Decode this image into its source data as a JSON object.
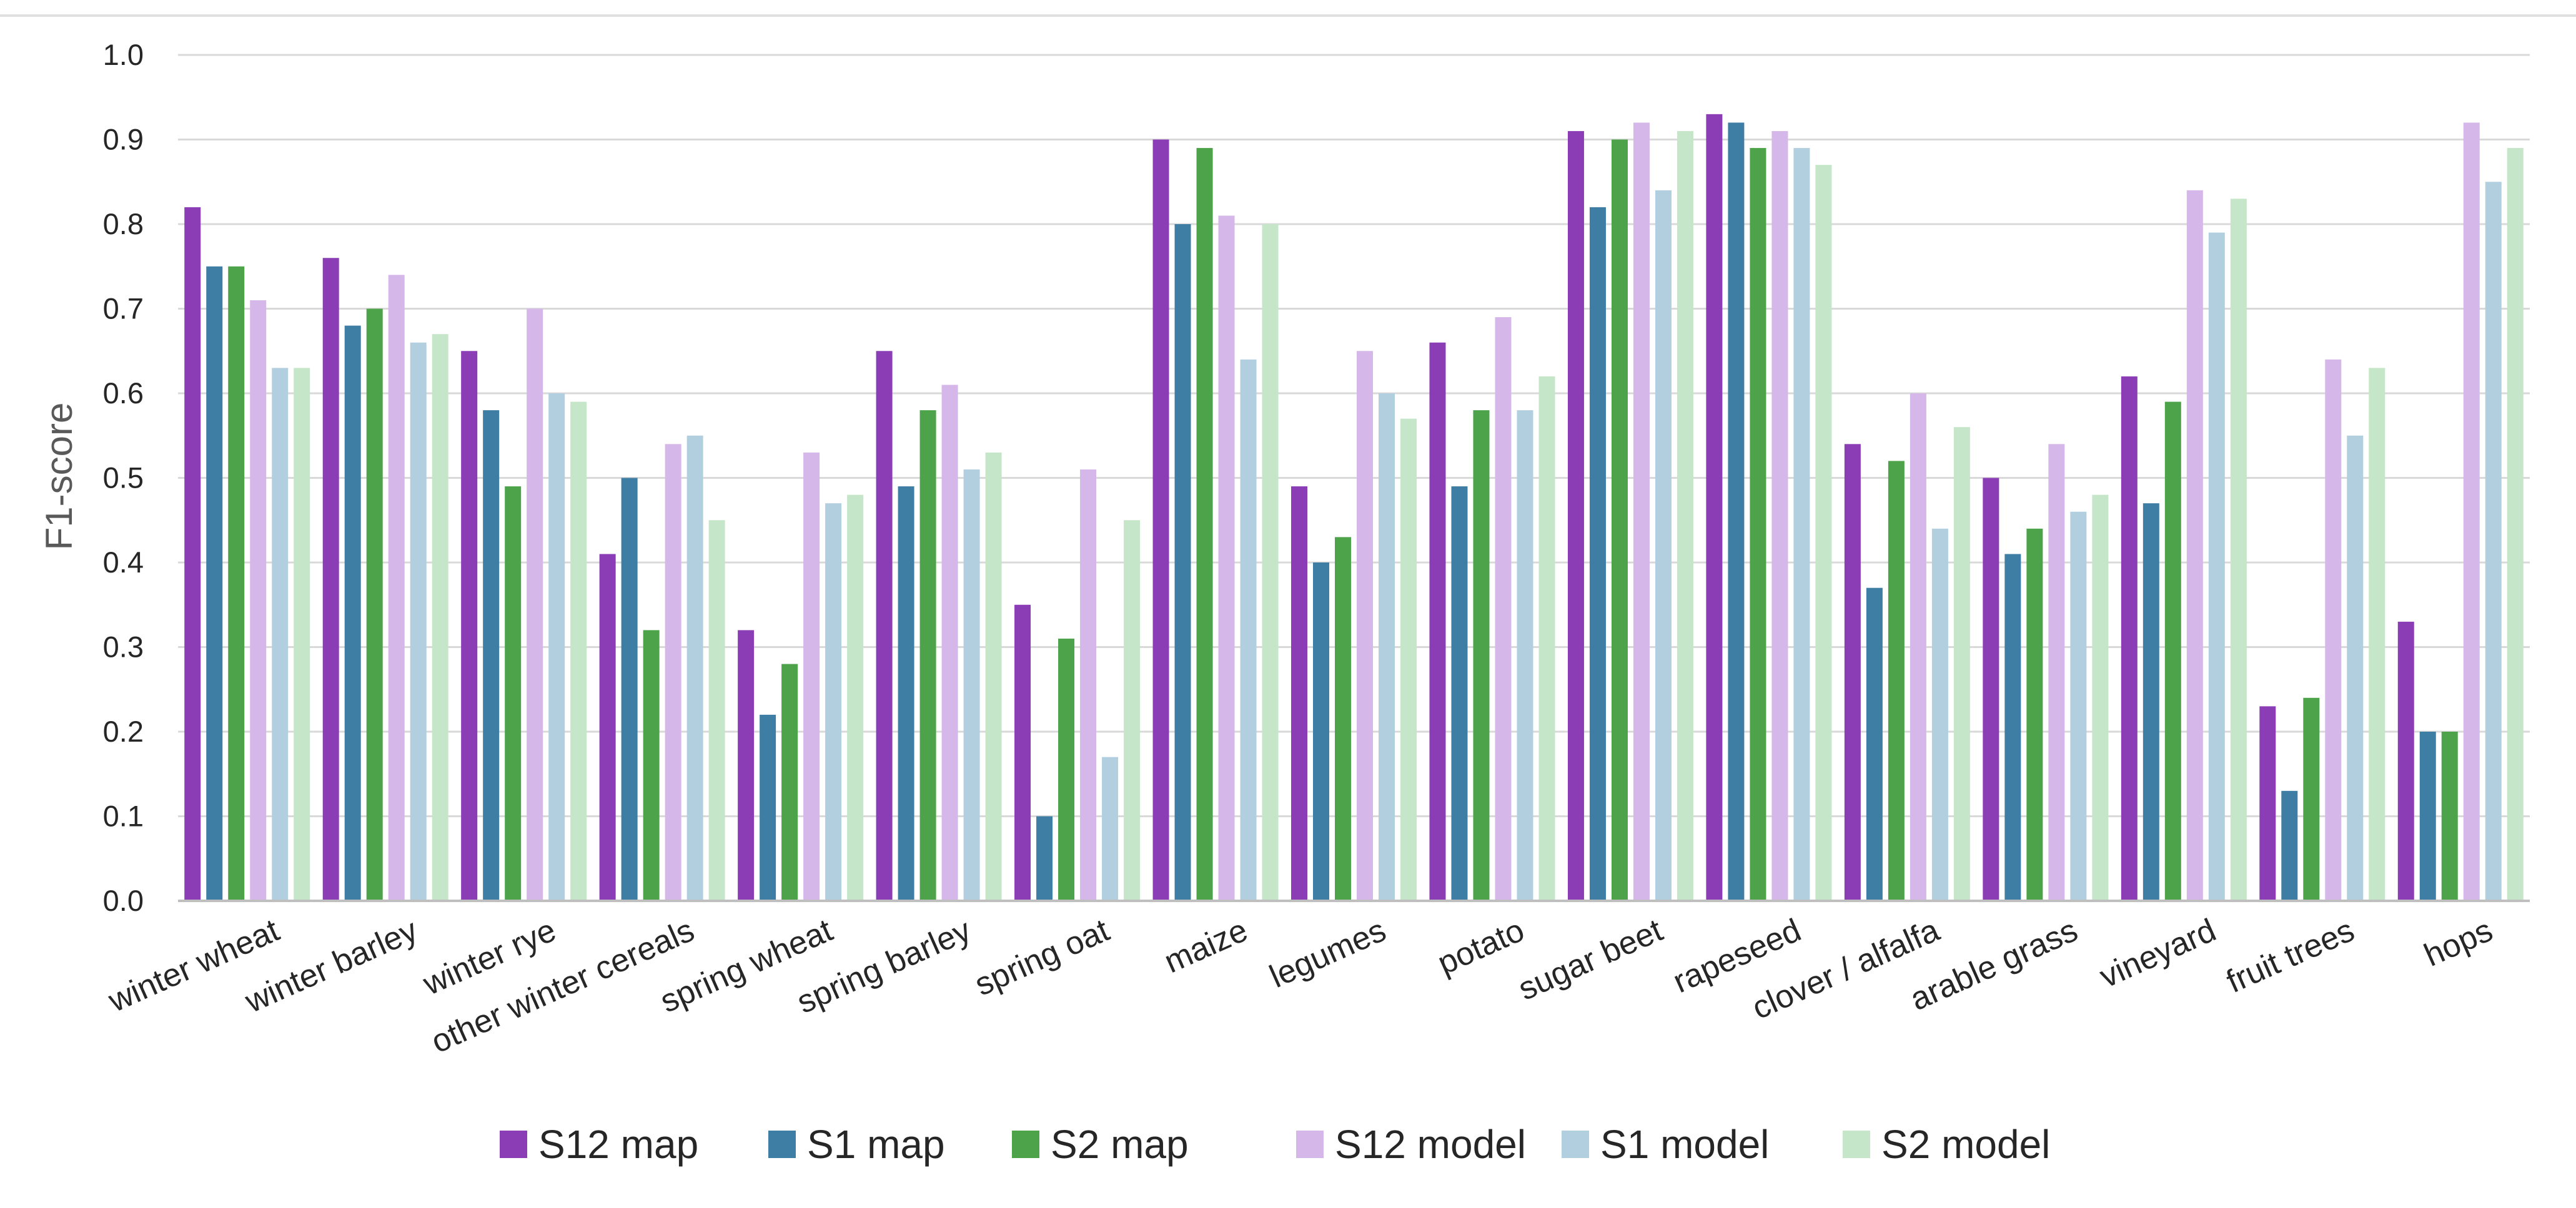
{
  "chart_data": {
    "type": "bar",
    "title": "",
    "xlabel": "",
    "ylabel": "F1-score",
    "ylim": [
      0,
      1
    ],
    "yticks": [
      "0.0",
      "0.1",
      "0.2",
      "0.3",
      "0.4",
      "0.5",
      "0.6",
      "0.7",
      "0.8",
      "0.9",
      "1.0"
    ],
    "grid": true,
    "legend_position": "bottom",
    "categories": [
      "winter wheat",
      "winter barley",
      "winter rye",
      "other winter cereals",
      "spring wheat",
      "spring barley",
      "spring oat",
      "maize",
      "legumes",
      "potato",
      "sugar beet",
      "rapeseed",
      "clover / alfalfa",
      "arable grass",
      "vineyard",
      "fruit trees",
      "hops"
    ],
    "series": [
      {
        "name": "S12 map",
        "color": "#8b3db6",
        "values": [
          0.82,
          0.76,
          0.65,
          0.41,
          0.32,
          0.65,
          0.35,
          0.9,
          0.49,
          0.66,
          0.91,
          0.93,
          0.54,
          0.5,
          0.62,
          0.23,
          0.33
        ]
      },
      {
        "name": "S1 map",
        "color": "#3f7ea4",
        "values": [
          0.75,
          0.68,
          0.58,
          0.5,
          0.22,
          0.49,
          0.1,
          0.8,
          0.4,
          0.49,
          0.82,
          0.92,
          0.37,
          0.41,
          0.47,
          0.13,
          0.2
        ]
      },
      {
        "name": "S2 map",
        "color": "#4da34a",
        "values": [
          0.75,
          0.7,
          0.49,
          0.32,
          0.28,
          0.58,
          0.31,
          0.89,
          0.43,
          0.58,
          0.9,
          0.89,
          0.52,
          0.44,
          0.59,
          0.24,
          0.2
        ]
      },
      {
        "name": "S12 model",
        "color": "#d6b7ea",
        "values": [
          0.71,
          0.74,
          0.7,
          0.54,
          0.53,
          0.61,
          0.51,
          0.81,
          0.65,
          0.69,
          0.92,
          0.91,
          0.6,
          0.54,
          0.84,
          0.64,
          0.92
        ]
      },
      {
        "name": "S1 model",
        "color": "#b2cfe0",
        "values": [
          0.63,
          0.66,
          0.6,
          0.55,
          0.47,
          0.51,
          0.17,
          0.64,
          0.6,
          0.58,
          0.84,
          0.89,
          0.44,
          0.46,
          0.79,
          0.55,
          0.85
        ]
      },
      {
        "name": "S2 model",
        "color": "#c5e6c8",
        "values": [
          0.63,
          0.67,
          0.59,
          0.45,
          0.48,
          0.53,
          0.45,
          0.8,
          0.57,
          0.62,
          0.91,
          0.87,
          0.56,
          0.48,
          0.83,
          0.63,
          0.89
        ]
      }
    ]
  }
}
